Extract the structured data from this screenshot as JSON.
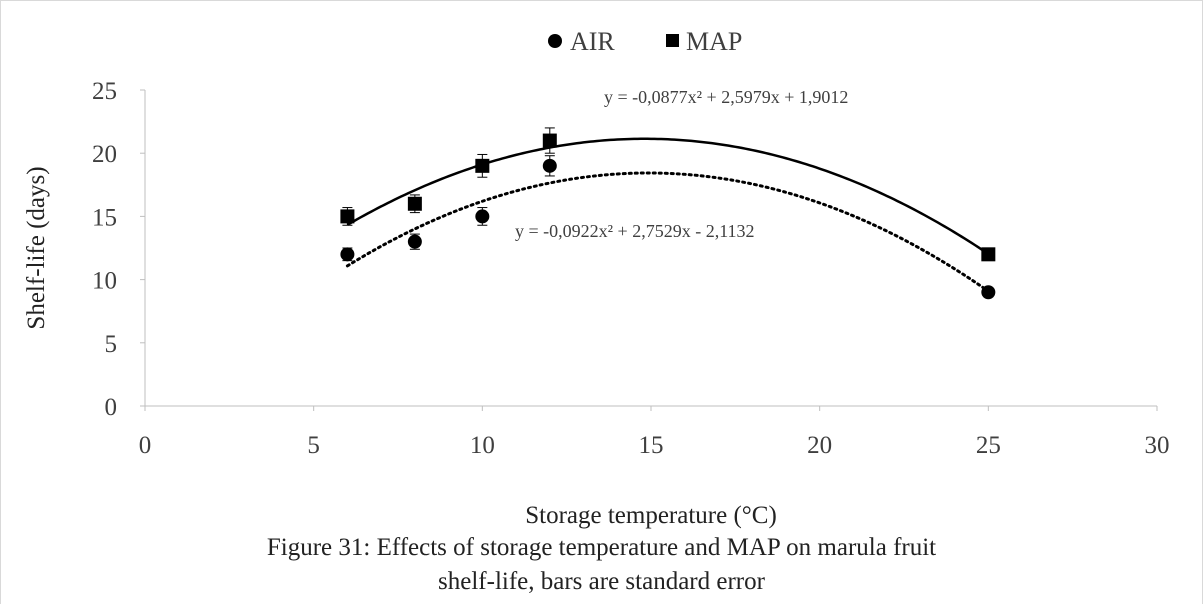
{
  "chart_data": {
    "type": "scatter",
    "xlabel": "Storage temperature (°C)",
    "ylabel": "Shelf-life (days)",
    "xlim": [
      0,
      30
    ],
    "ylim": [
      0,
      25
    ],
    "x_ticks": [
      0,
      5,
      10,
      15,
      20,
      25,
      30
    ],
    "y_ticks": [
      0,
      5,
      10,
      15,
      20,
      25
    ],
    "grid": false,
    "legend_position": "top",
    "series": [
      {
        "name": "AIR",
        "marker": "circle",
        "color": "#000000",
        "x": [
          6,
          8,
          10,
          12,
          25
        ],
        "y": [
          12,
          13,
          15,
          19,
          9
        ],
        "error": [
          0.5,
          0.6,
          0.7,
          0.8,
          0.3
        ],
        "trendline": {
          "style": "dotted",
          "coefficients": [
            -0.0922,
            2.7529,
            -2.1132
          ],
          "equation_label": "y = -0,0922x² + 2,7529x - 2,1132"
        }
      },
      {
        "name": "MAP",
        "marker": "square",
        "color": "#000000",
        "x": [
          6,
          8,
          10,
          12,
          25
        ],
        "y": [
          15,
          16,
          19,
          21,
          12
        ],
        "error": [
          0.7,
          0.7,
          0.9,
          1.0,
          0.3
        ],
        "trendline": {
          "style": "solid",
          "coefficients": [
            -0.0877,
            2.5979,
            1.9012
          ],
          "equation_label": "y = -0,0877x² + 2,5979x + 1,9012"
        }
      }
    ]
  },
  "caption": {
    "line1": "Figure 31:  Effects of storage temperature and  MAP on marula fruit",
    "line2": "shelf-life, bars are standard error"
  }
}
